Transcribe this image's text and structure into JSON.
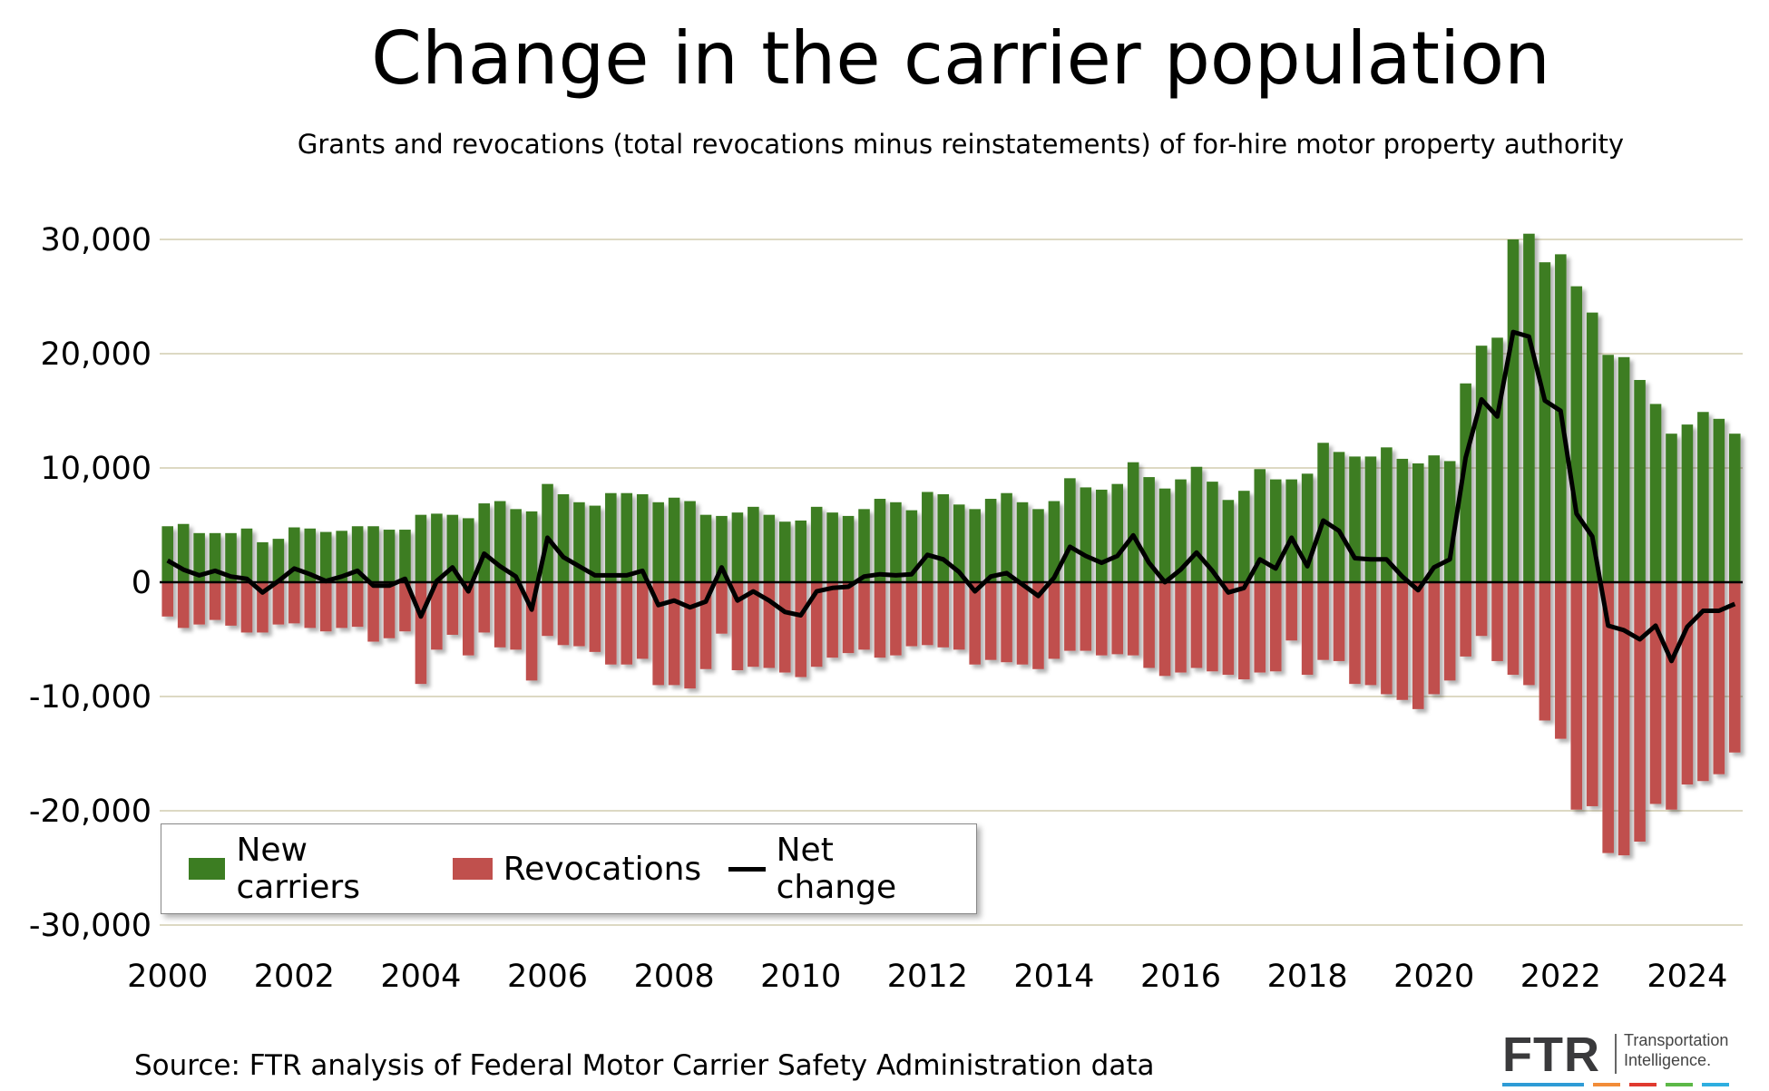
{
  "title": "Change in the carrier population",
  "subtitle": "Grants and revocations (total revocations minus reinstatements) of for-hire motor property authority",
  "source": "Source: FTR analysis of Federal Motor Carrier Safety Administration data",
  "logo": {
    "text": "FTR",
    "tagline_1": "Transportation",
    "tagline_2": "Intelligence.",
    "stripe_colors": [
      "#2e9bd6",
      "#f28c38",
      "#e03a2f",
      "#5cb847",
      "#2eaee0"
    ]
  },
  "colors": {
    "new_carriers": "#3c7d22",
    "revocations": "#c0504d",
    "net_change": "#000000",
    "grid": "#ddd9c3"
  },
  "legend": {
    "new": "New carriers",
    "rev": "Revocations",
    "net": "Net change"
  },
  "chart_data": {
    "type": "bar",
    "stacked": "diverging",
    "frequency": "quarterly",
    "start": "2000Q1",
    "end": "2024Q4",
    "ylim": [
      -30000,
      30000
    ],
    "yticks": [
      30000,
      20000,
      10000,
      0,
      -10000,
      -20000,
      -30000
    ],
    "ytick_labels": [
      "30,000",
      "20,000",
      "10,000",
      "0",
      "-10,000",
      "-20,000",
      "-30,000"
    ],
    "xtick_labels": [
      "2000",
      "2002",
      "2004",
      "2006",
      "2008",
      "2010",
      "2012",
      "2014",
      "2016",
      "2018",
      "2020",
      "2022",
      "2024"
    ],
    "grid": true,
    "legend_position": "bottom-left",
    "series": [
      {
        "name": "New carriers",
        "type": "bar",
        "values": [
          4900,
          5100,
          4300,
          4300,
          4300,
          4700,
          3500,
          3800,
          4800,
          4700,
          4400,
          4500,
          4900,
          4900,
          4600,
          4600,
          5900,
          6000,
          5900,
          5600,
          6900,
          7100,
          6400,
          6200,
          8600,
          7700,
          7000,
          6700,
          7800,
          7800,
          7700,
          7000,
          7400,
          7100,
          5900,
          5800,
          6100,
          6600,
          5900,
          5300,
          5400,
          6600,
          6100,
          5800,
          6400,
          7300,
          7000,
          6300,
          7900,
          7700,
          6800,
          6400,
          7300,
          7800,
          7000,
          6400,
          7100,
          9100,
          8300,
          8100,
          8600,
          10500,
          9200,
          8200,
          9000,
          10100,
          8800,
          7200,
          8000,
          9900,
          9000,
          9000,
          9500,
          12200,
          11400,
          11000,
          11000,
          11800,
          10800,
          10400,
          11100,
          10600,
          17400,
          20700,
          21400,
          30000,
          30500,
          28000,
          28700,
          25900,
          23600,
          19900,
          19700,
          17700,
          15600,
          13000,
          13800,
          14900,
          14300,
          13000
        ]
      },
      {
        "name": "Revocations",
        "type": "bar",
        "values": [
          -3000,
          -4000,
          -3700,
          -3300,
          -3800,
          -4400,
          -4400,
          -3700,
          -3600,
          -4000,
          -4300,
          -4000,
          -3900,
          -5200,
          -4900,
          -4300,
          -8900,
          -5900,
          -4600,
          -6400,
          -4400,
          -5700,
          -5900,
          -8600,
          -4700,
          -5500,
          -5600,
          -6100,
          -7200,
          -7200,
          -6700,
          -9000,
          -9000,
          -9300,
          -7600,
          -4500,
          -7700,
          -7400,
          -7500,
          -7900,
          -8300,
          -7400,
          -6600,
          -6200,
          -5900,
          -6600,
          -6400,
          -5600,
          -5500,
          -5700,
          -5900,
          -7200,
          -6800,
          -7000,
          -7200,
          -7600,
          -6700,
          -6000,
          -6000,
          -6400,
          -6300,
          -6400,
          -7500,
          -8200,
          -7900,
          -7500,
          -7800,
          -8100,
          -8500,
          -7900,
          -7800,
          -5100,
          -8100,
          -6800,
          -6900,
          -8900,
          -9000,
          -9800,
          -10300,
          -11100,
          -9800,
          -8600,
          -6500,
          -4700,
          -6900,
          -8100,
          -9000,
          -12100,
          -13700,
          -19900,
          -19600,
          -23700,
          -23900,
          -22700,
          -19400,
          -19900,
          -17700,
          -17400,
          -16800,
          -14900
        ]
      },
      {
        "name": "Net change",
        "type": "line",
        "values": [
          1900,
          1100,
          600,
          1000,
          500,
          300,
          -900,
          100,
          1200,
          700,
          100,
          500,
          1000,
          -300,
          -300,
          300,
          -3000,
          100,
          1300,
          -800,
          2500,
          1400,
          500,
          -2400,
          3900,
          2200,
          1400,
          600,
          600,
          600,
          1000,
          -2000,
          -1600,
          -2200,
          -1700,
          1300,
          -1600,
          -800,
          -1600,
          -2600,
          -2900,
          -800,
          -500,
          -400,
          500,
          700,
          600,
          700,
          2400,
          2000,
          900,
          -800,
          500,
          800,
          -200,
          -1200,
          400,
          3100,
          2300,
          1700,
          2300,
          4100,
          1700,
          0,
          1100,
          2600,
          1000,
          -900,
          -500,
          2000,
          1200,
          3900,
          1400,
          5400,
          4500,
          2100,
          2000,
          2000,
          500,
          -700,
          1300,
          2000,
          10900,
          16000,
          14500,
          21900,
          21500,
          15900,
          15000,
          6000,
          4000,
          -3800,
          -4200,
          -5000,
          -3800,
          -6900,
          -3900,
          -2500,
          -2500,
          -1900
        ]
      }
    ]
  }
}
